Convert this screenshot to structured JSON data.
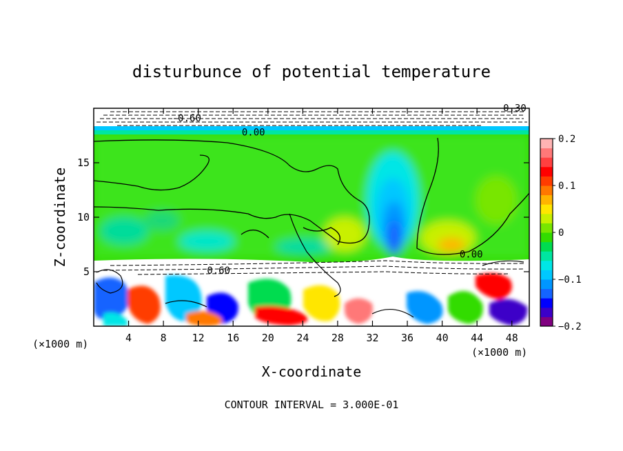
{
  "chart_data": {
    "type": "heatmap",
    "title": "disturbunce of potential temperature",
    "xlabel": "X-coordinate",
    "ylabel": "Z-coordinate",
    "x_unit": "(×1000 m)",
    "z_unit": "(×1000 m)",
    "footer": "CONTOUR INTERVAL = 3.000E-01",
    "xlim": [
      0,
      50
    ],
    "ylim": [
      0,
      20
    ],
    "x_ticks": [
      4,
      8,
      12,
      16,
      20,
      24,
      28,
      32,
      36,
      40,
      44,
      48
    ],
    "y_ticks": [
      5,
      10,
      15
    ],
    "colorbar": {
      "range": [
        -0.2,
        0.2
      ],
      "ticks": [
        0.2,
        0.1,
        0,
        -0.1,
        -0.2
      ],
      "tick_labels": [
        "0.2",
        "0.1",
        "0",
        "−0.1",
        "−0.2"
      ],
      "colors": [
        "#800080",
        "#3c00c8",
        "#0000ff",
        "#1464ff",
        "#0096ff",
        "#00c8ff",
        "#00e6e6",
        "#00e6a0",
        "#00dc50",
        "#32dc00",
        "#78e600",
        "#c8f000",
        "#ffe600",
        "#ffb400",
        "#ff7800",
        "#ff3c00",
        "#ff0000",
        "#ff4040",
        "#ff7878",
        "#ffb4b4"
      ]
    },
    "contour_labels": [
      {
        "text": "0.00",
        "x": 17,
        "z": 17.5
      },
      {
        "text": "0.00",
        "x": 42,
        "z": 6.3
      },
      {
        "text": "-0.60",
        "x": 9,
        "z": 18.8
      },
      {
        "text": "0.60",
        "x": 13,
        "z": 4.8
      },
      {
        "text": "0.30",
        "x": 47,
        "z": 19.7
      }
    ]
  }
}
